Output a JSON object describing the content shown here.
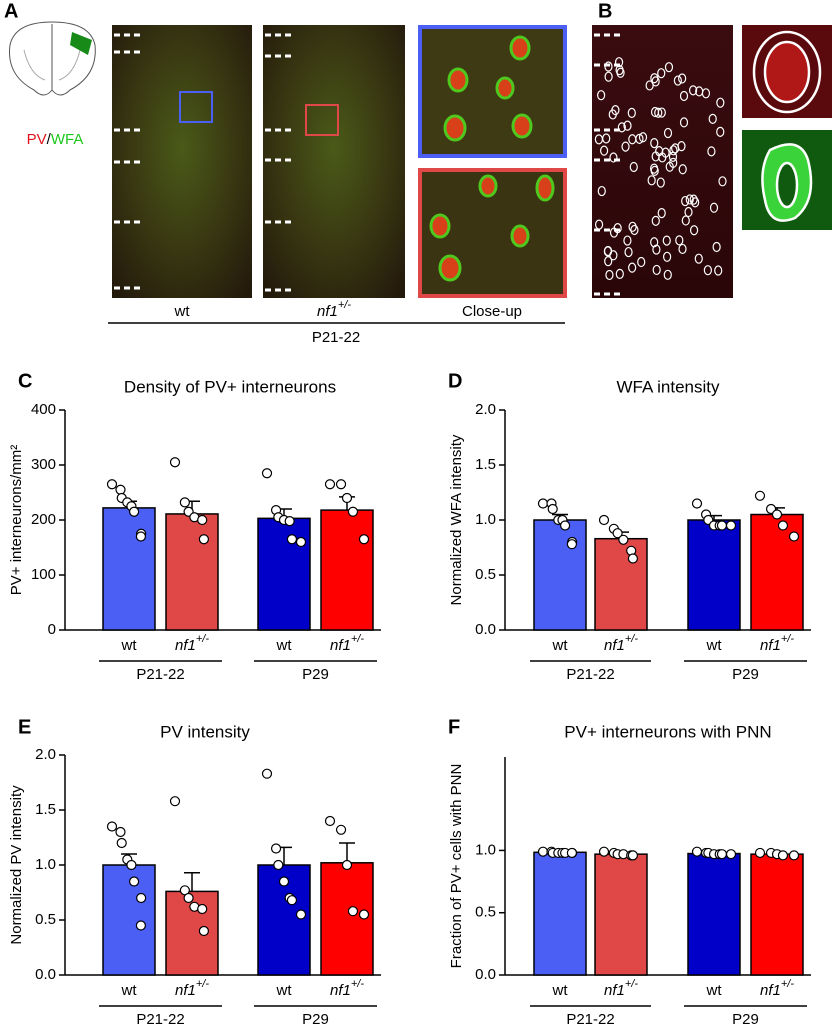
{
  "figure": {
    "panel_a": {
      "label": "A",
      "stain": [
        "PV",
        "/",
        "WFA"
      ],
      "images": [
        "wt",
        "nf1+/-",
        "Close-up"
      ],
      "age": "P21-22"
    },
    "panel_b": {
      "label": "B"
    }
  },
  "chart_data": [
    {
      "panel": "C",
      "type": "bar",
      "title": "Density of PV+ interneurons",
      "ylabel": "PV+ interneurons/mm²",
      "categories": [
        "wt",
        "nf1+/-",
        "wt",
        "nf1+/-"
      ],
      "groups": [
        "P21-22",
        "P29"
      ],
      "colors": [
        "#4b5ff5",
        "#e04848",
        "#0000c8",
        "#ff0000"
      ],
      "values": [
        222,
        211,
        203,
        218
      ],
      "errors": [
        12,
        23,
        17,
        24
      ],
      "points": [
        [
          265,
          255,
          240,
          232,
          225,
          215,
          175,
          170
        ],
        [
          305,
          232,
          215,
          205,
          200,
          165
        ],
        [
          285,
          218,
          205,
          200,
          198,
          165,
          160
        ],
        [
          265,
          265,
          240,
          215,
          165
        ]
      ],
      "ylim": [
        0,
        400
      ],
      "yticks": [
        0,
        100,
        200,
        300,
        400
      ]
    },
    {
      "panel": "D",
      "type": "bar",
      "title": "WFA intensity",
      "ylabel": "Normalized WFA intensity",
      "categories": [
        "wt",
        "nf1+/-",
        "wt",
        "nf1+/-"
      ],
      "groups": [
        "P21-22",
        "P29"
      ],
      "colors": [
        "#4b5ff5",
        "#e04848",
        "#0000c8",
        "#ff0000"
      ],
      "values": [
        1.0,
        0.83,
        1.0,
        1.05
      ],
      "errors": [
        0.05,
        0.06,
        0.04,
        0.06
      ],
      "points": [
        [
          1.15,
          1.15,
          1.1,
          1.0,
          1.0,
          0.95,
          0.8,
          0.78
        ],
        [
          1.0,
          0.92,
          0.88,
          0.82,
          0.72,
          0.65
        ],
        [
          1.15,
          1.05,
          1.0,
          0.95,
          0.95,
          0.95,
          0.95
        ],
        [
          1.22,
          1.1,
          1.05,
          0.95,
          0.85
        ]
      ],
      "ylim": [
        0,
        2
      ],
      "yticks": [
        {
          "value": 0,
          "label": "0.0"
        },
        {
          "value": 0.5,
          "label": "0.5"
        },
        {
          "value": 1,
          "label": "1.0"
        },
        {
          "value": 1.5,
          "label": "1.5"
        },
        {
          "value": 2,
          "label": "2.0"
        }
      ]
    },
    {
      "panel": "E",
      "type": "bar",
      "title": "PV intensity",
      "ylabel": "Normalized PV intensity",
      "categories": [
        "wt",
        "nf1+/-",
        "wt",
        "nf1+/-"
      ],
      "groups": [
        "P21-22",
        "P29"
      ],
      "colors": [
        "#4b5ff5",
        "#e04848",
        "#0000c8",
        "#ff0000"
      ],
      "values": [
        1.0,
        0.76,
        1.0,
        1.02
      ],
      "errors": [
        0.1,
        0.17,
        0.16,
        0.18
      ],
      "points": [
        [
          1.35,
          1.3,
          1.2,
          1.05,
          1.0,
          0.85,
          0.7,
          0.45
        ],
        [
          1.58,
          0.77,
          0.7,
          0.62,
          0.6,
          0.4
        ],
        [
          1.83,
          1.15,
          1.0,
          0.85,
          0.7,
          0.68,
          0.55
        ],
        [
          1.4,
          1.32,
          1.0,
          0.58,
          0.55
        ]
      ],
      "ylim": [
        0,
        2
      ],
      "yticks": [
        {
          "value": 0,
          "label": "0.0"
        },
        {
          "value": 0.5,
          "label": "0.5"
        },
        {
          "value": 1,
          "label": "1.0"
        },
        {
          "value": 1.5,
          "label": "1.5"
        },
        {
          "value": 2,
          "label": "2.0"
        }
      ]
    },
    {
      "panel": "F",
      "type": "bar",
      "title": "PV+ interneurons with PNN",
      "ylabel": "Fraction of PV+ cells with PNN",
      "categories": [
        "wt",
        "nf1+/-",
        "wt",
        "nf1+/-"
      ],
      "groups": [
        "P21-22",
        "P29"
      ],
      "colors": [
        "#4b5ff5",
        "#e04848",
        "#0000c8",
        "#ff0000"
      ],
      "values": [
        0.985,
        0.97,
        0.975,
        0.97
      ],
      "errors": [
        0.005,
        0.008,
        0.006,
        0.007
      ],
      "points": [
        [
          0.99,
          0.99,
          0.98,
          0.98,
          0.98,
          0.98,
          0.98,
          0.98
        ],
        [
          0.99,
          0.98,
          0.97,
          0.97,
          0.96,
          0.96
        ],
        [
          0.99,
          0.98,
          0.98,
          0.97,
          0.97,
          0.97,
          0.97
        ],
        [
          0.98,
          0.98,
          0.97,
          0.96,
          0.96
        ]
      ],
      "ylim": [
        0,
        1.75
      ],
      "yticks": [
        {
          "value": 0,
          "label": "0.0"
        },
        {
          "value": 0.5,
          "label": "0.5"
        },
        {
          "value": 1,
          "label": "1.0"
        }
      ]
    }
  ]
}
